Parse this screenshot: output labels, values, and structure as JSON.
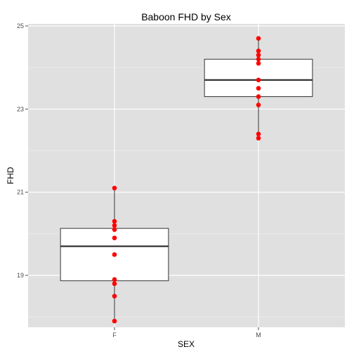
{
  "chart_data": {
    "type": "boxplot",
    "title": "Baboon FHD by Sex",
    "xlabel": "SEX",
    "ylabel": "FHD",
    "categories": [
      "F",
      "M"
    ],
    "y_ticks": [
      19,
      21,
      23,
      25
    ],
    "ylim": [
      17.75,
      25.05
    ],
    "grid": true,
    "boxes": [
      {
        "category": "F",
        "min": 17.9,
        "q1": 18.87,
        "median": 19.7,
        "q3": 20.13,
        "max": 21.1
      },
      {
        "category": "M",
        "min": 22.3,
        "q1": 23.3,
        "median": 23.7,
        "q3": 24.2,
        "max": 24.7
      }
    ],
    "points": [
      {
        "category": "F",
        "values": [
          21.1,
          20.3,
          20.2,
          20.1,
          19.9,
          19.5,
          18.9,
          18.8,
          18.5,
          17.9
        ]
      },
      {
        "category": "M",
        "values": [
          24.7,
          24.4,
          24.3,
          24.2,
          24.1,
          23.7,
          23.5,
          23.3,
          23.1,
          22.4,
          22.3
        ]
      }
    ],
    "colors": {
      "panel": "#e0e0e0",
      "grid_major": "#ffffff",
      "grid_minor": "#ececec",
      "box_fill": "#ffffff",
      "box_stroke": "#333333",
      "point": "#ff0000"
    }
  }
}
